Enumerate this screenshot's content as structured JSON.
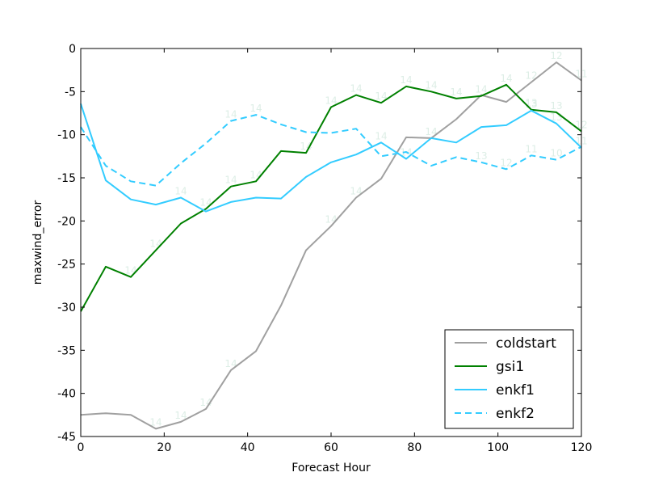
{
  "chart_data": {
    "type": "line",
    "title": "",
    "xlabel": "Forecast Hour",
    "ylabel": "maxwind_error",
    "xlim": [
      0,
      120
    ],
    "ylim": [
      -45,
      0
    ],
    "x_ticks": [
      0,
      20,
      40,
      60,
      80,
      100,
      120
    ],
    "y_ticks": [
      0,
      -5,
      -10,
      -15,
      -20,
      -25,
      -30,
      -35,
      -40,
      -45
    ],
    "grid": false,
    "legend_position": "lower-right",
    "series": [
      {
        "name": "coldstart",
        "color": "#a0a0a0",
        "dash": "solid",
        "x": [
          0,
          6,
          12,
          18,
          24,
          30,
          36,
          42,
          48,
          54,
          60,
          66,
          72,
          78,
          84,
          90,
          96,
          102,
          108,
          114,
          120
        ],
        "y": [
          -42.5,
          -42.3,
          -42.5,
          -44.1,
          -43.3,
          -41.8,
          -37.3,
          -35.1,
          -29.8,
          -23.4,
          -20.6,
          -17.3,
          -15.1,
          -10.3,
          -10.4,
          -8.2,
          -5.4,
          -6.2,
          -3.9,
          -1.6,
          -3.7
        ]
      },
      {
        "name": "gsi1",
        "color": "#008000",
        "dash": "solid",
        "x": [
          0,
          6,
          12,
          18,
          24,
          30,
          36,
          42,
          48,
          54,
          60,
          66,
          72,
          78,
          84,
          90,
          96,
          102,
          108,
          114,
          120
        ],
        "y": [
          -30.5,
          -25.3,
          -26.5,
          -23.4,
          -20.3,
          -18.6,
          -16.0,
          -15.4,
          -11.9,
          -12.1,
          -6.8,
          -5.4,
          -6.3,
          -4.4,
          -5.0,
          -5.8,
          -5.5,
          -4.2,
          -7.1,
          -7.4,
          -9.6
        ]
      },
      {
        "name": "enkf1",
        "color": "#33ccff",
        "dash": "solid",
        "x": [
          0,
          6,
          12,
          18,
          24,
          30,
          36,
          42,
          48,
          54,
          60,
          66,
          72,
          78,
          84,
          90,
          96,
          102,
          108,
          114,
          120
        ],
        "y": [
          -6.4,
          -15.3,
          -17.5,
          -18.1,
          -17.3,
          -18.9,
          -17.8,
          -17.3,
          -17.4,
          -14.9,
          -13.2,
          -12.3,
          -10.9,
          -12.8,
          -10.4,
          -10.9,
          -9.1,
          -8.9,
          -7.2,
          -8.7,
          -11.5
        ]
      },
      {
        "name": "enkf2",
        "color": "#33ccff",
        "dash": "dashed",
        "x": [
          0,
          6,
          12,
          18,
          24,
          30,
          36,
          42,
          48,
          54,
          60,
          66,
          72,
          78,
          84,
          90,
          96,
          102,
          108,
          114,
          120
        ],
        "y": [
          -9.1,
          -13.6,
          -15.4,
          -15.9,
          -13.3,
          -11.0,
          -8.4,
          -7.7,
          -8.8,
          -9.7,
          -9.8,
          -9.3,
          -12.5,
          -12.0,
          -13.6,
          -12.6,
          -13.2,
          -14.0,
          -12.4,
          -12.9,
          -11.4
        ]
      }
    ],
    "sample_size_labels": [
      {
        "x": 18,
        "y": -44.1,
        "text": "14"
      },
      {
        "x": 24,
        "y": -43.3,
        "text": "14"
      },
      {
        "x": 30,
        "y": -41.8,
        "text": "14"
      },
      {
        "x": 36,
        "y": -37.3,
        "text": "14"
      },
      {
        "x": 60,
        "y": -20.6,
        "text": "14"
      },
      {
        "x": 66,
        "y": -17.3,
        "text": "14"
      },
      {
        "x": 84,
        "y": -10.4,
        "text": "14"
      },
      {
        "x": 108,
        "y": -3.9,
        "text": "12"
      },
      {
        "x": 114,
        "y": -1.6,
        "text": "12"
      },
      {
        "x": 120,
        "y": -3.7,
        "text": "11"
      },
      {
        "x": 12,
        "y": -26.5,
        "text": "14"
      },
      {
        "x": 18,
        "y": -23.4,
        "text": "14"
      },
      {
        "x": 30,
        "y": -18.6,
        "text": "14"
      },
      {
        "x": 36,
        "y": -16.0,
        "text": "14"
      },
      {
        "x": 42,
        "y": -15.4,
        "text": "14"
      },
      {
        "x": 54,
        "y": -12.1,
        "text": "14"
      },
      {
        "x": 60,
        "y": -6.8,
        "text": "14"
      },
      {
        "x": 66,
        "y": -5.4,
        "text": "14"
      },
      {
        "x": 72,
        "y": -6.3,
        "text": "14"
      },
      {
        "x": 78,
        "y": -4.4,
        "text": "14"
      },
      {
        "x": 84,
        "y": -5.0,
        "text": "14"
      },
      {
        "x": 90,
        "y": -5.8,
        "text": "14"
      },
      {
        "x": 96,
        "y": -5.5,
        "text": "14"
      },
      {
        "x": 102,
        "y": -4.2,
        "text": "14"
      },
      {
        "x": 108,
        "y": -7.1,
        "text": "13"
      },
      {
        "x": 114,
        "y": -7.4,
        "text": "13"
      },
      {
        "x": 120,
        "y": -9.6,
        "text": "12"
      },
      {
        "x": 24,
        "y": -17.3,
        "text": "14"
      },
      {
        "x": 72,
        "y": -10.9,
        "text": "14"
      },
      {
        "x": 78,
        "y": -12.8,
        "text": "14"
      },
      {
        "x": 108,
        "y": -7.2,
        "text": "13"
      },
      {
        "x": 114,
        "y": -8.7,
        "text": "13"
      },
      {
        "x": 120,
        "y": -11.5,
        "text": "11"
      },
      {
        "x": 36,
        "y": -8.4,
        "text": "14"
      },
      {
        "x": 42,
        "y": -7.7,
        "text": "14"
      },
      {
        "x": 96,
        "y": -13.2,
        "text": "13"
      },
      {
        "x": 102,
        "y": -14.0,
        "text": "12"
      },
      {
        "x": 108,
        "y": -12.4,
        "text": "11"
      },
      {
        "x": 114,
        "y": -12.9,
        "text": "10"
      }
    ]
  }
}
